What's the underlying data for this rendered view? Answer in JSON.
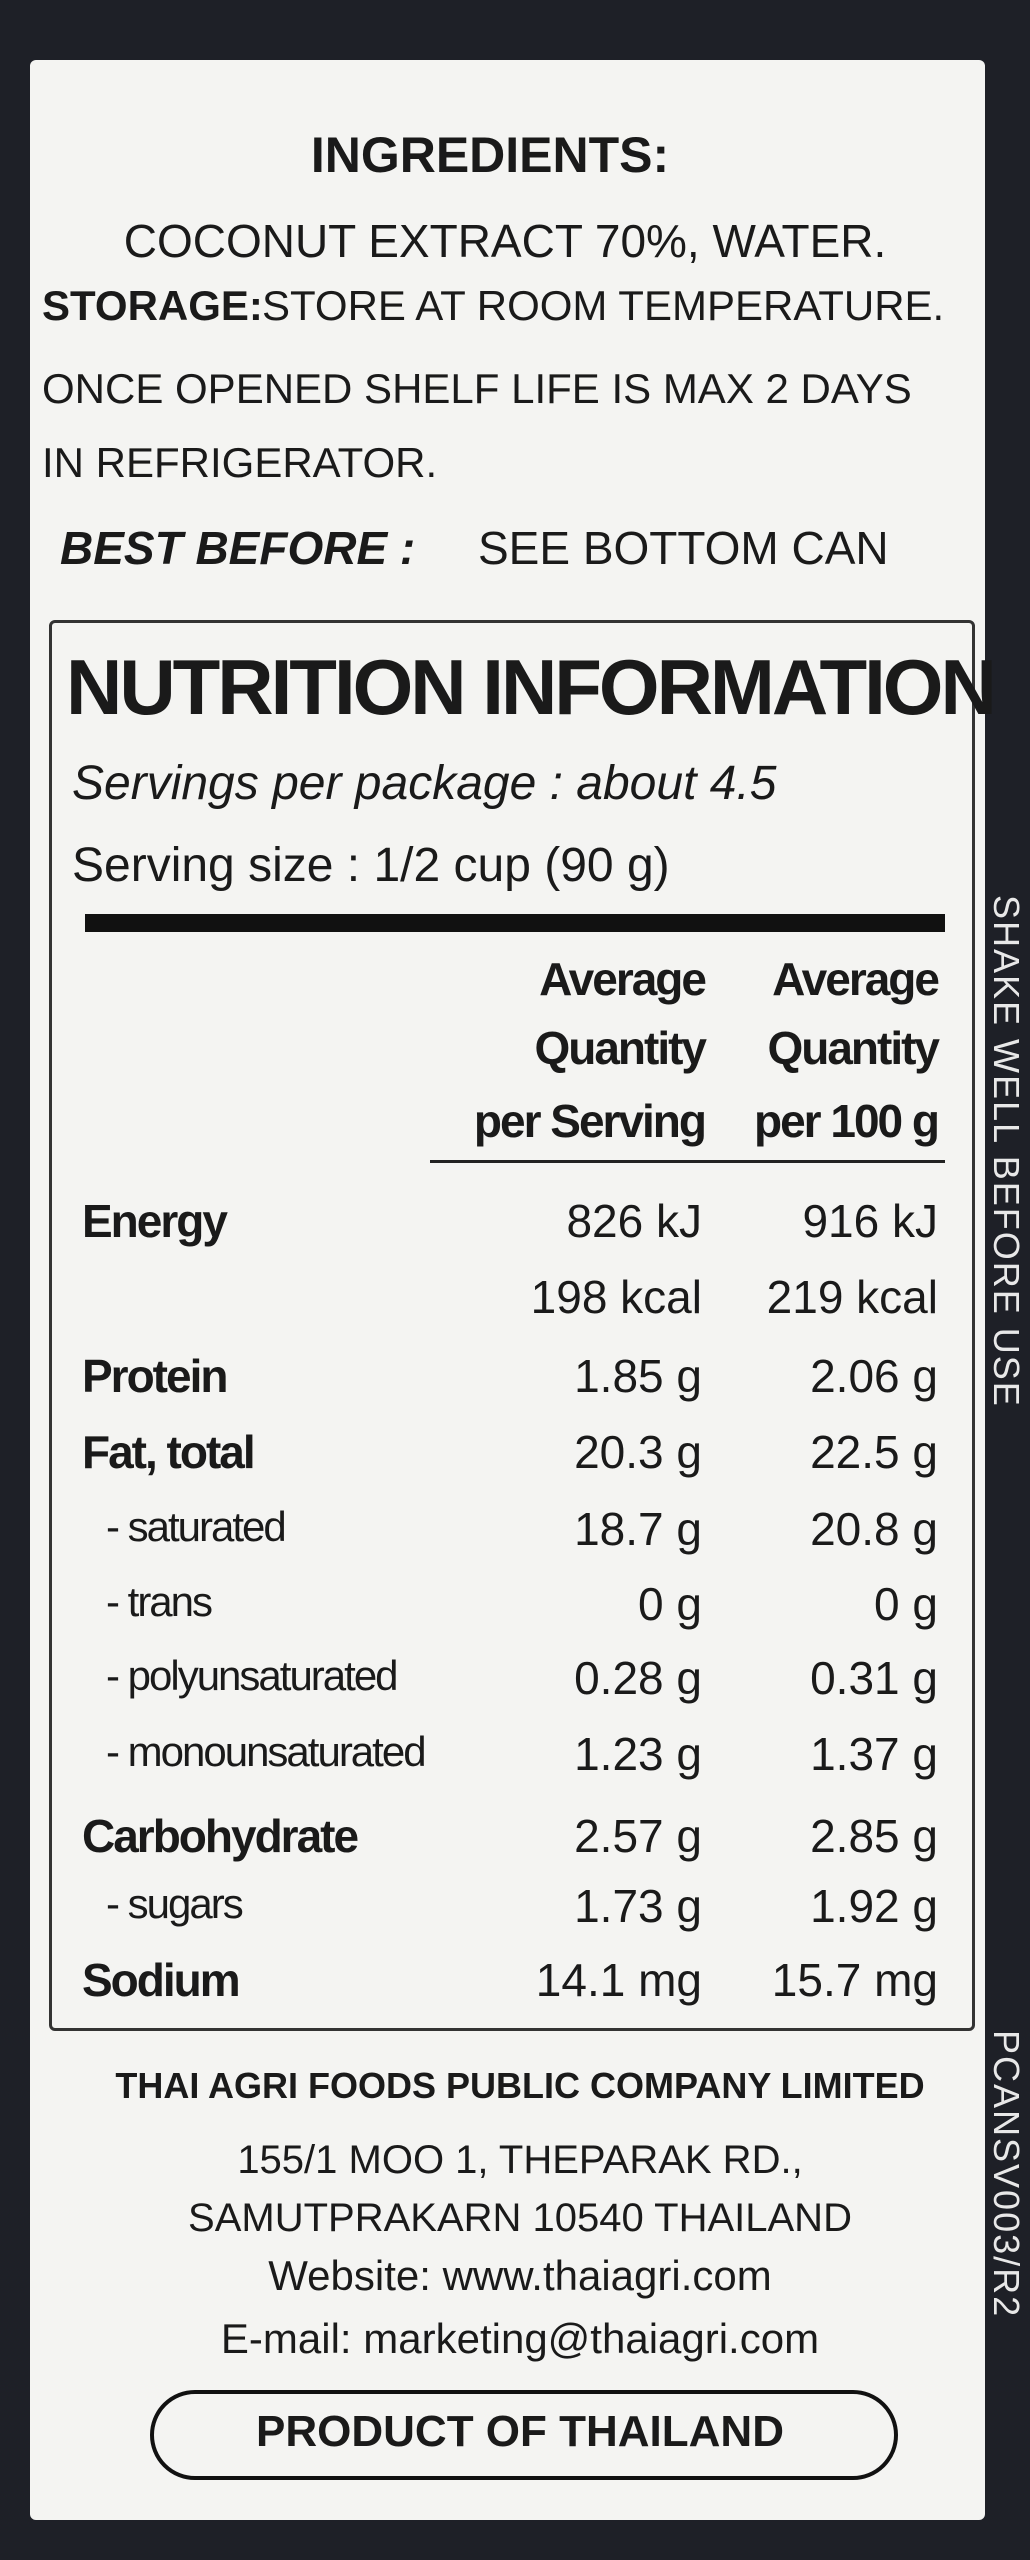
{
  "ingredients": {
    "heading": "INGREDIENTS:",
    "text": "COCONUT EXTRACT 70%, WATER."
  },
  "storage": {
    "label": "STORAGE:",
    "lines": [
      "STORE AT ROOM TEMPERATURE.",
      "ONCE OPENED SHELF LIFE  IS MAX 2 DAYS",
      "IN REFRIGERATOR."
    ]
  },
  "best_before": {
    "label": "BEST BEFORE :",
    "text": "SEE BOTTOM CAN"
  },
  "nutrition": {
    "title": "NUTRITION INFORMATION",
    "servings_per_package": "Servings per package : about  4.5",
    "serving_size": "Serving size : 1/2 cup (90 g)",
    "columns": [
      [
        "Average",
        "Quantity",
        "per Serving"
      ],
      [
        "Average",
        "Quantity",
        "per 100 g"
      ]
    ],
    "rows": [
      {
        "name": "Energy",
        "serving": "826 kJ",
        "per100": "916 kJ"
      },
      {
        "serving": "198 kcal",
        "per100": "219 kcal"
      },
      {
        "name": "Protein",
        "serving": "1.85 g",
        "per100": "2.06 g"
      },
      {
        "name": "Fat, total",
        "serving": "20.3 g",
        "per100": "22.5 g"
      },
      {
        "name": "- saturated",
        "serving": "18.7 g",
        "per100": "20.8 g",
        "sub": true
      },
      {
        "name": "- trans",
        "serving": "0 g",
        "per100": "0 g",
        "sub": true
      },
      {
        "name": "- polyunsaturated",
        "serving": "0.28 g",
        "per100": "0.31 g",
        "sub": true
      },
      {
        "name": "- monounsaturated",
        "serving": "1.23 g",
        "per100": "1.37 g",
        "sub": true
      },
      {
        "name": "Carbohydrate",
        "serving": "2.57 g",
        "per100": "2.85 g"
      },
      {
        "name": "- sugars",
        "serving": "1.73 g",
        "per100": "1.92 g",
        "sub": true
      },
      {
        "name": "Sodium",
        "serving": "14.1 mg",
        "per100": "15.7 mg"
      }
    ]
  },
  "footer": {
    "company": "THAI AGRI FOODS PUBLIC COMPANY LIMITED",
    "address": [
      "155/1 MOO 1, THEPARAK RD.,",
      "SAMUTPRAKARN 10540 THAILAND"
    ],
    "website": "Website: www.thaiagri.com",
    "email": "E-mail: marketing@thaiagri.com",
    "origin": "PRODUCT OF THAILAND"
  },
  "side": {
    "shake": "SHAKE WELL BEFORE USE",
    "code": "PCANSV003/R2"
  }
}
